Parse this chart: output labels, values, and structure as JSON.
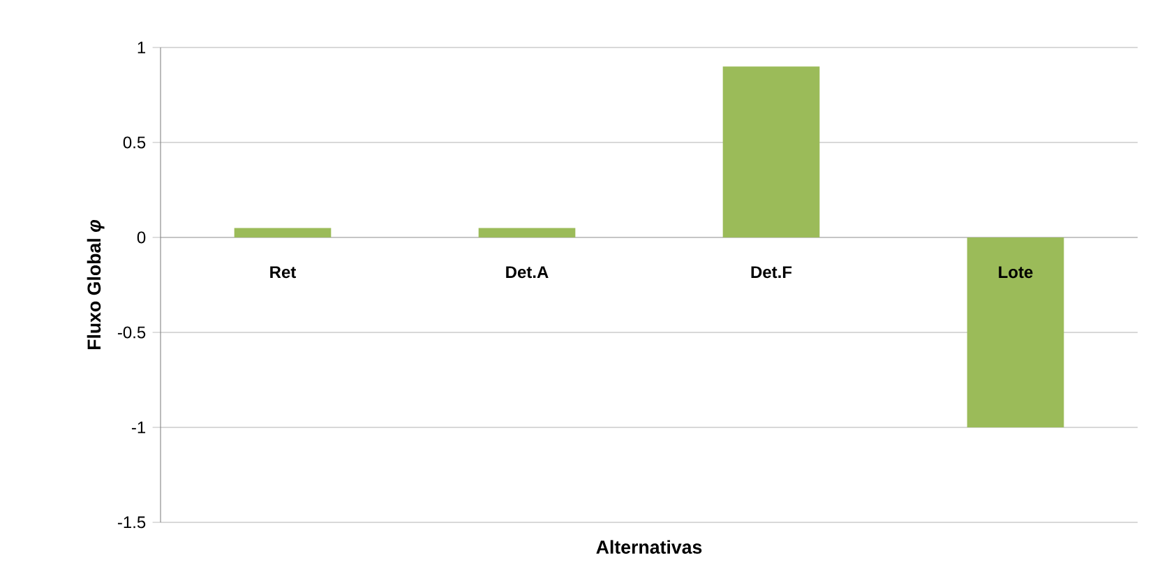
{
  "chart_data": {
    "type": "bar",
    "xlabel": "Alternativas",
    "ylabel": "Fluxo Global *φ*",
    "categories": [
      "Ret",
      "Det.A",
      "Det.F",
      "Lote"
    ],
    "values": [
      0.05,
      0.05,
      0.9,
      -1.0
    ],
    "color": "#9bbb59",
    "ylim": [
      -1.5,
      1
    ],
    "yticks": [
      -1.5,
      -1,
      -0.5,
      0,
      0.5,
      1
    ],
    "grid": "y"
  }
}
